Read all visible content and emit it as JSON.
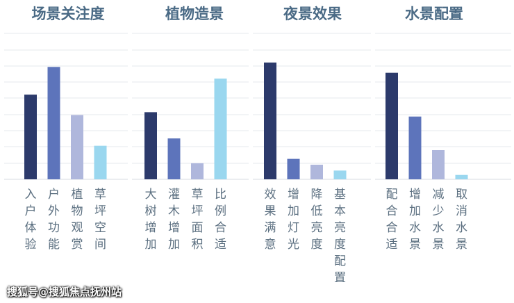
{
  "chart_data": {
    "type": "bar",
    "ylim": [
      0,
      100
    ],
    "grid": true,
    "colors": [
      "#2c3a6b",
      "#5d74bb",
      "#afb7dc",
      "#9ad7ef"
    ],
    "panels": [
      {
        "title": "场景关注度",
        "categories": [
          "入户体验",
          "户外功能",
          "植物观赏",
          "草坪空间"
        ],
        "values": [
          58,
          77,
          44,
          23
        ]
      },
      {
        "title": "植物造景",
        "categories": [
          "大树增加",
          "灌木增加",
          "草坪面积",
          "比例合适"
        ],
        "values": [
          46,
          28,
          11,
          69
        ]
      },
      {
        "title": "夜景效果",
        "categories": [
          "效果满意",
          "增加灯光",
          "降低亮度",
          "基本亮度配置"
        ],
        "values": [
          80,
          14,
          10,
          6
        ]
      },
      {
        "title": "水景配置",
        "categories": [
          "配合合适",
          "增加水景",
          "减少水景",
          "取消水景"
        ],
        "values": [
          73,
          43,
          20,
          3
        ]
      }
    ]
  },
  "watermark": "搜狐号@搜狐焦点抚州站"
}
